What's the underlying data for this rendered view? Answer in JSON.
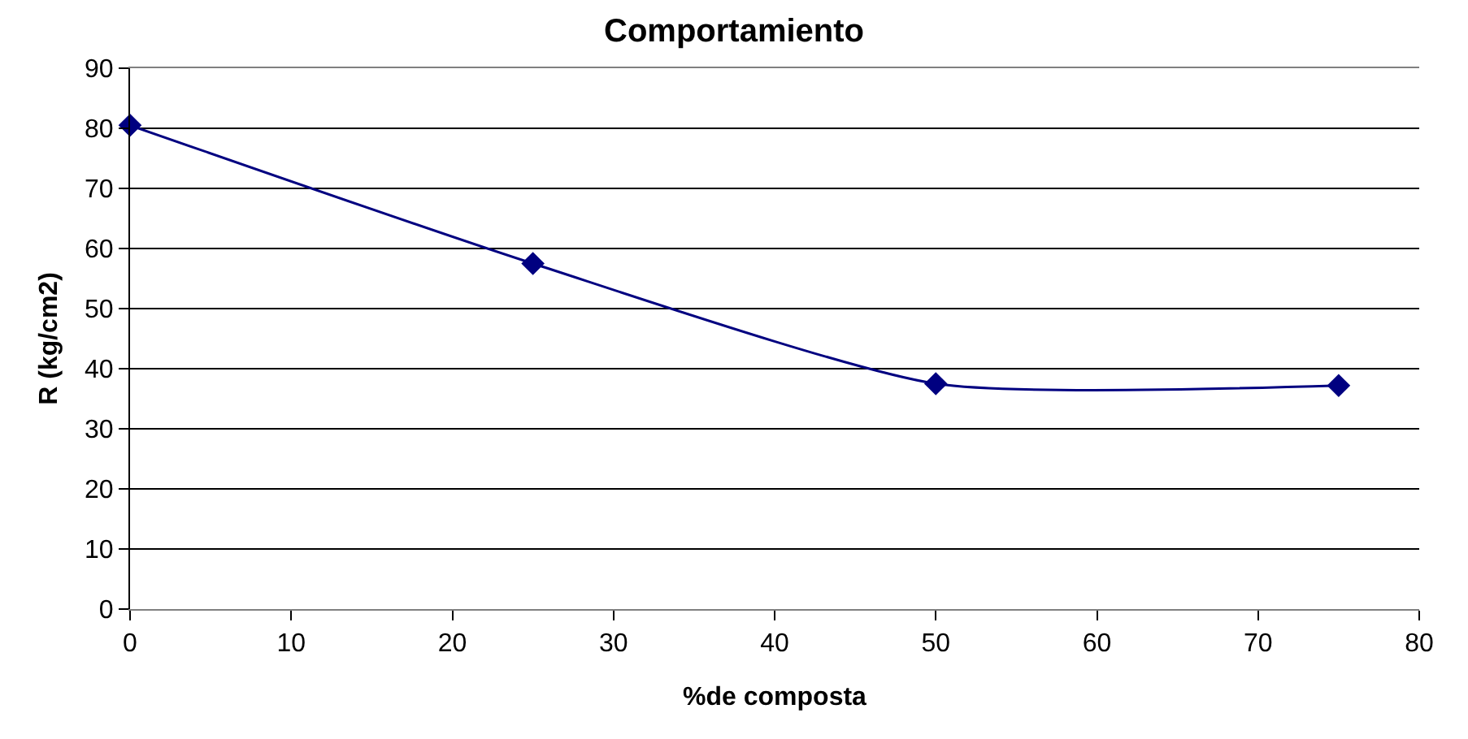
{
  "chart_data": {
    "type": "line",
    "title": "Comportamiento",
    "xlabel": "%de composta",
    "ylabel": "R (kg/cm2)",
    "x": [
      0,
      25,
      50,
      75
    ],
    "series": [
      {
        "color": "#000080",
        "values": [
          80.5,
          57.5,
          37.5,
          37.2
        ]
      }
    ],
    "xlim": [
      0,
      80
    ],
    "xticks": [
      0,
      10,
      20,
      30,
      40,
      50,
      60,
      70,
      80
    ],
    "ylim": [
      0,
      90
    ],
    "yticks": [
      0,
      10,
      20,
      30,
      40,
      50,
      60,
      70,
      80,
      90
    ],
    "grid": "y",
    "marker": "diamond",
    "line_style": "solid"
  }
}
